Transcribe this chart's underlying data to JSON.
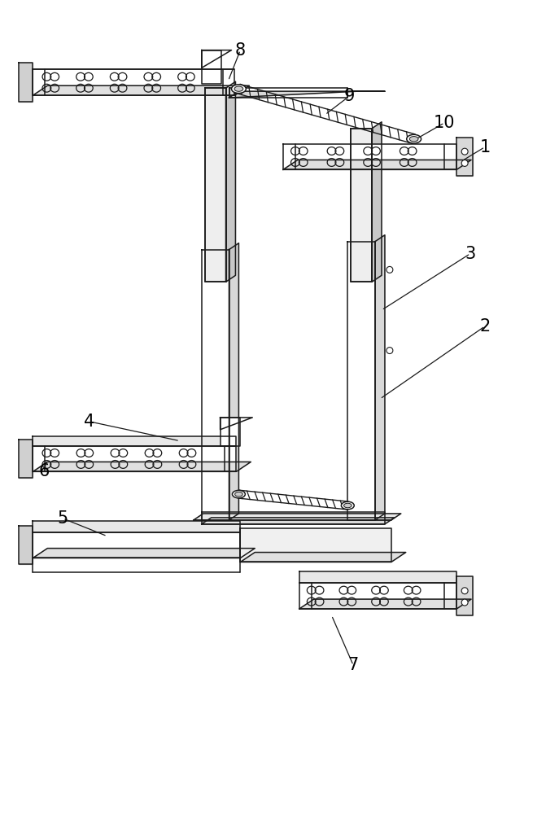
{
  "bg_color": "#ffffff",
  "line_color": "#1a1a1a",
  "lw": 1.1,
  "fig_width": 6.87,
  "fig_height": 10.0,
  "label_fontsize": 15
}
